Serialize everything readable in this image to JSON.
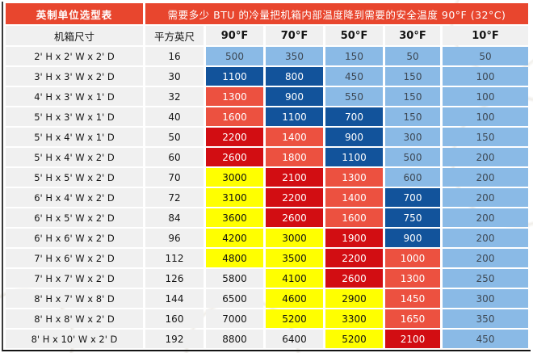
{
  "page": {
    "title_left": "英制单位选型表",
    "title_right": "需要多少 BTU 的冷量把机箱内部温度降到需要的安全温度 90°F (32°C)"
  },
  "colors": {
    "header_red": "#E8462E",
    "light_blue": "#8ABAE6",
    "dark_blue": "#12539B",
    "orange_red": "#EC5140",
    "deep_red": "#D20D12",
    "yellow": "#FFFF00",
    "gray_cell": "#F0F0F0"
  },
  "chart_data": {
    "type": "heatmap",
    "title": "需要多少 BTU 的冷量把机箱内部温度降到需要的安全温度 90°F (32°C)",
    "table_label": "英制单位选型表",
    "columns": [
      "机箱尺寸",
      "平方英尺",
      "90°F",
      "70°F",
      "50°F",
      "30°F",
      "10°F"
    ],
    "color_key": {
      "lb": "light_blue",
      "db": "dark_blue",
      "or": "orange_red",
      "dr": "deep_red",
      "yl": "yellow",
      "wh": "gray_cell"
    },
    "rows": [
      {
        "size": "2' H x 2' W x 2' D",
        "sqft": 16,
        "btu": [
          500,
          350,
          150,
          50,
          50
        ],
        "cell_colors": [
          "lb",
          "lb",
          "lb",
          "lb",
          "lb"
        ]
      },
      {
        "size": "3' H x 3' W x 2' D",
        "sqft": 30,
        "btu": [
          1100,
          800,
          450,
          150,
          100
        ],
        "cell_colors": [
          "db",
          "db",
          "lb",
          "lb",
          "lb"
        ]
      },
      {
        "size": "4' H x 3' W x 1' D",
        "sqft": 32,
        "btu": [
          1300,
          900,
          550,
          150,
          100
        ],
        "cell_colors": [
          "or",
          "db",
          "lb",
          "lb",
          "lb"
        ]
      },
      {
        "size": "5' H x 3' W x 1' D",
        "sqft": 40,
        "btu": [
          1600,
          1100,
          700,
          150,
          100
        ],
        "cell_colors": [
          "or",
          "db",
          "db",
          "lb",
          "lb"
        ]
      },
      {
        "size": "5' H x 4' W x 1' D",
        "sqft": 50,
        "btu": [
          2200,
          1400,
          900,
          300,
          150
        ],
        "cell_colors": [
          "dr",
          "or",
          "db",
          "lb",
          "lb"
        ]
      },
      {
        "size": "5' H x 4' W x 2' D",
        "sqft": 60,
        "btu": [
          2600,
          1800,
          1100,
          500,
          200
        ],
        "cell_colors": [
          "dr",
          "or",
          "db",
          "lb",
          "lb"
        ]
      },
      {
        "size": "5' H x 5' W x 2' D",
        "sqft": 70,
        "btu": [
          3000,
          2100,
          1300,
          600,
          200
        ],
        "cell_colors": [
          "yl",
          "dr",
          "or",
          "lb",
          "lb"
        ]
      },
      {
        "size": "6' H x 4' W x 2' D",
        "sqft": 72,
        "btu": [
          3100,
          2200,
          1400,
          700,
          200
        ],
        "cell_colors": [
          "yl",
          "dr",
          "or",
          "db",
          "lb"
        ]
      },
      {
        "size": "6' H x 5' W x 2' D",
        "sqft": 84,
        "btu": [
          3600,
          2600,
          1600,
          750,
          200
        ],
        "cell_colors": [
          "yl",
          "dr",
          "or",
          "db",
          "lb"
        ]
      },
      {
        "size": "6' H x 6' W x 2' D",
        "sqft": 96,
        "btu": [
          4200,
          3000,
          1900,
          900,
          200
        ],
        "cell_colors": [
          "yl",
          "yl",
          "dr",
          "db",
          "lb"
        ]
      },
      {
        "size": "7' H x 6' W x 2' D",
        "sqft": 112,
        "btu": [
          4800,
          3500,
          2200,
          1000,
          200
        ],
        "cell_colors": [
          "yl",
          "yl",
          "dr",
          "or",
          "lb"
        ]
      },
      {
        "size": "7' H x 7' W x 2' D",
        "sqft": 126,
        "btu": [
          5800,
          4100,
          2600,
          1300,
          250
        ],
        "cell_colors": [
          "wh",
          "yl",
          "dr",
          "or",
          "lb"
        ]
      },
      {
        "size": "8' H x 7' W x 8' D",
        "sqft": 144,
        "btu": [
          6500,
          4600,
          2900,
          1450,
          300
        ],
        "cell_colors": [
          "wh",
          "yl",
          "yl",
          "or",
          "lb"
        ]
      },
      {
        "size": "8' H x 8' W x 2' D",
        "sqft": 160,
        "btu": [
          7000,
          5200,
          3300,
          1650,
          350
        ],
        "cell_colors": [
          "wh",
          "yl",
          "yl",
          "or",
          "lb"
        ]
      },
      {
        "size": "8' H x 10' W x 2' D",
        "sqft": 192,
        "btu": [
          8800,
          6400,
          5200,
          2100,
          450
        ],
        "cell_colors": [
          "wh",
          "wh",
          "yl",
          "dr",
          "lb"
        ]
      }
    ]
  }
}
